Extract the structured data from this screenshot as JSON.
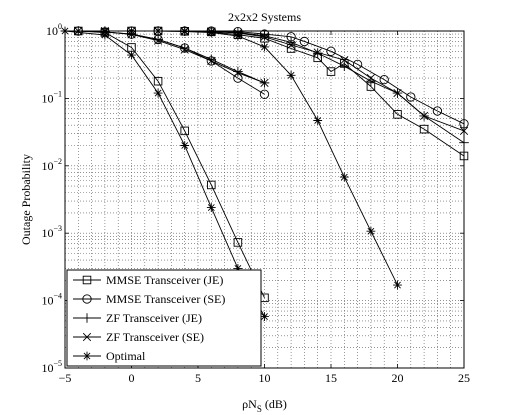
{
  "chart_data": {
    "type": "line",
    "title": "2x2x2 Systems",
    "xlabel": "ρN_S (dB)",
    "ylabel": "Outage Probability",
    "xlim": [
      -5,
      25
    ],
    "ylim_log10": [
      -5,
      0
    ],
    "y_scale": "log",
    "grid": "dotted, major and minor",
    "legend_position": "bottom-left",
    "x_ticks": [
      "−5",
      "0",
      "5",
      "10",
      "15",
      "20",
      "25"
    ],
    "y_ticks": [
      {
        "base": "10",
        "exp": "0"
      },
      {
        "base": "10",
        "exp": "−1"
      },
      {
        "base": "10",
        "exp": "−2"
      },
      {
        "base": "10",
        "exp": "−3"
      },
      {
        "base": "10",
        "exp": "−4"
      },
      {
        "base": "10",
        "exp": "−5"
      }
    ],
    "series": [
      {
        "name": "MMSE Transceiver (JE)",
        "marker": "square",
        "points": [
          [
            -4,
            1.0
          ],
          [
            -2,
            0.95
          ],
          [
            0,
            0.57
          ],
          [
            2,
            0.18
          ],
          [
            4,
            0.033
          ],
          [
            6,
            0.0052
          ],
          [
            8,
            0.00073
          ],
          [
            10,
            0.00011
          ],
          [
            0,
            1.0
          ],
          [
            2,
            1.0
          ],
          [
            4,
            0.99
          ],
          [
            6,
            0.97
          ],
          [
            8,
            0.88
          ],
          [
            10,
            0.78
          ],
          [
            12,
            0.55
          ],
          [
            14,
            0.4
          ],
          [
            15,
            0.25
          ],
          [
            16,
            0.33
          ],
          [
            18,
            0.15
          ],
          [
            20,
            0.058
          ],
          [
            22,
            0.035
          ],
          [
            25,
            0.014
          ]
        ]
      },
      {
        "name": "MMSE Transceiver (SE)",
        "marker": "circle",
        "points": [
          [
            -4,
            1.0
          ],
          [
            -2,
            0.97
          ],
          [
            0,
            0.9
          ],
          [
            2,
            0.75
          ],
          [
            4,
            0.56
          ],
          [
            6,
            0.36
          ],
          [
            8,
            0.2
          ],
          [
            10,
            0.115
          ],
          [
            0,
            1.0
          ],
          [
            2,
            1.0
          ],
          [
            4,
            1.0
          ],
          [
            6,
            1.0
          ],
          [
            8,
            0.98
          ],
          [
            10,
            0.9
          ],
          [
            12,
            0.82
          ],
          [
            13,
            0.7
          ],
          [
            15,
            0.5
          ],
          [
            17,
            0.32
          ],
          [
            19,
            0.19
          ],
          [
            21,
            0.105
          ],
          [
            23,
            0.065
          ],
          [
            25,
            0.042
          ]
        ]
      },
      {
        "name": "ZF Transceiver (JE)",
        "marker": "plus",
        "points": [
          [
            -4,
            1.0
          ],
          [
            -2,
            0.97
          ],
          [
            0,
            0.9
          ],
          [
            2,
            0.75
          ],
          [
            4,
            0.56
          ],
          [
            6,
            0.38
          ],
          [
            8,
            0.25
          ],
          [
            10,
            0.17
          ],
          [
            -2,
            1.0
          ],
          [
            2,
            1.0
          ],
          [
            4,
            1.0
          ],
          [
            6,
            0.99
          ],
          [
            8,
            0.95
          ],
          [
            10,
            0.85
          ],
          [
            12,
            0.68
          ],
          [
            14,
            0.47
          ],
          [
            16,
            0.3
          ],
          [
            18,
            0.18
          ],
          [
            20,
            0.12
          ],
          [
            22,
            0.055
          ],
          [
            25,
            0.022
          ]
        ]
      },
      {
        "name": "ZF Transceiver (SE)",
        "marker": "x",
        "points": [
          [
            -4,
            1.0
          ],
          [
            -2,
            0.97
          ],
          [
            0,
            0.89
          ],
          [
            2,
            0.72
          ],
          [
            4,
            0.53
          ],
          [
            6,
            0.36
          ],
          [
            8,
            0.24
          ],
          [
            10,
            0.17
          ],
          [
            -2,
            1.0
          ],
          [
            2,
            1.0
          ],
          [
            4,
            1.0
          ],
          [
            6,
            0.98
          ],
          [
            8,
            0.93
          ],
          [
            10,
            0.82
          ],
          [
            12,
            0.62
          ],
          [
            14,
            0.48
          ],
          [
            16,
            0.37
          ],
          [
            18,
            0.2
          ],
          [
            20,
            0.12
          ],
          [
            22,
            0.055
          ],
          [
            25,
            0.033
          ]
        ]
      },
      {
        "name": "Optimal",
        "marker": "star",
        "points": [
          [
            -5,
            1.0
          ],
          [
            -2,
            0.87
          ],
          [
            0,
            0.44
          ],
          [
            2,
            0.12
          ],
          [
            4,
            0.02
          ],
          [
            6,
            0.0024
          ],
          [
            8,
            0.0003
          ],
          [
            10,
            5.8e-05
          ],
          [
            0,
            1.0
          ],
          [
            2,
            1.0
          ],
          [
            4,
            0.98
          ],
          [
            6,
            0.95
          ],
          [
            8,
            0.84
          ],
          [
            10,
            0.58
          ],
          [
            12,
            0.22
          ],
          [
            14,
            0.047
          ],
          [
            16,
            0.0068
          ],
          [
            18,
            0.00107
          ],
          [
            20,
            0.00017
          ]
        ]
      }
    ]
  }
}
